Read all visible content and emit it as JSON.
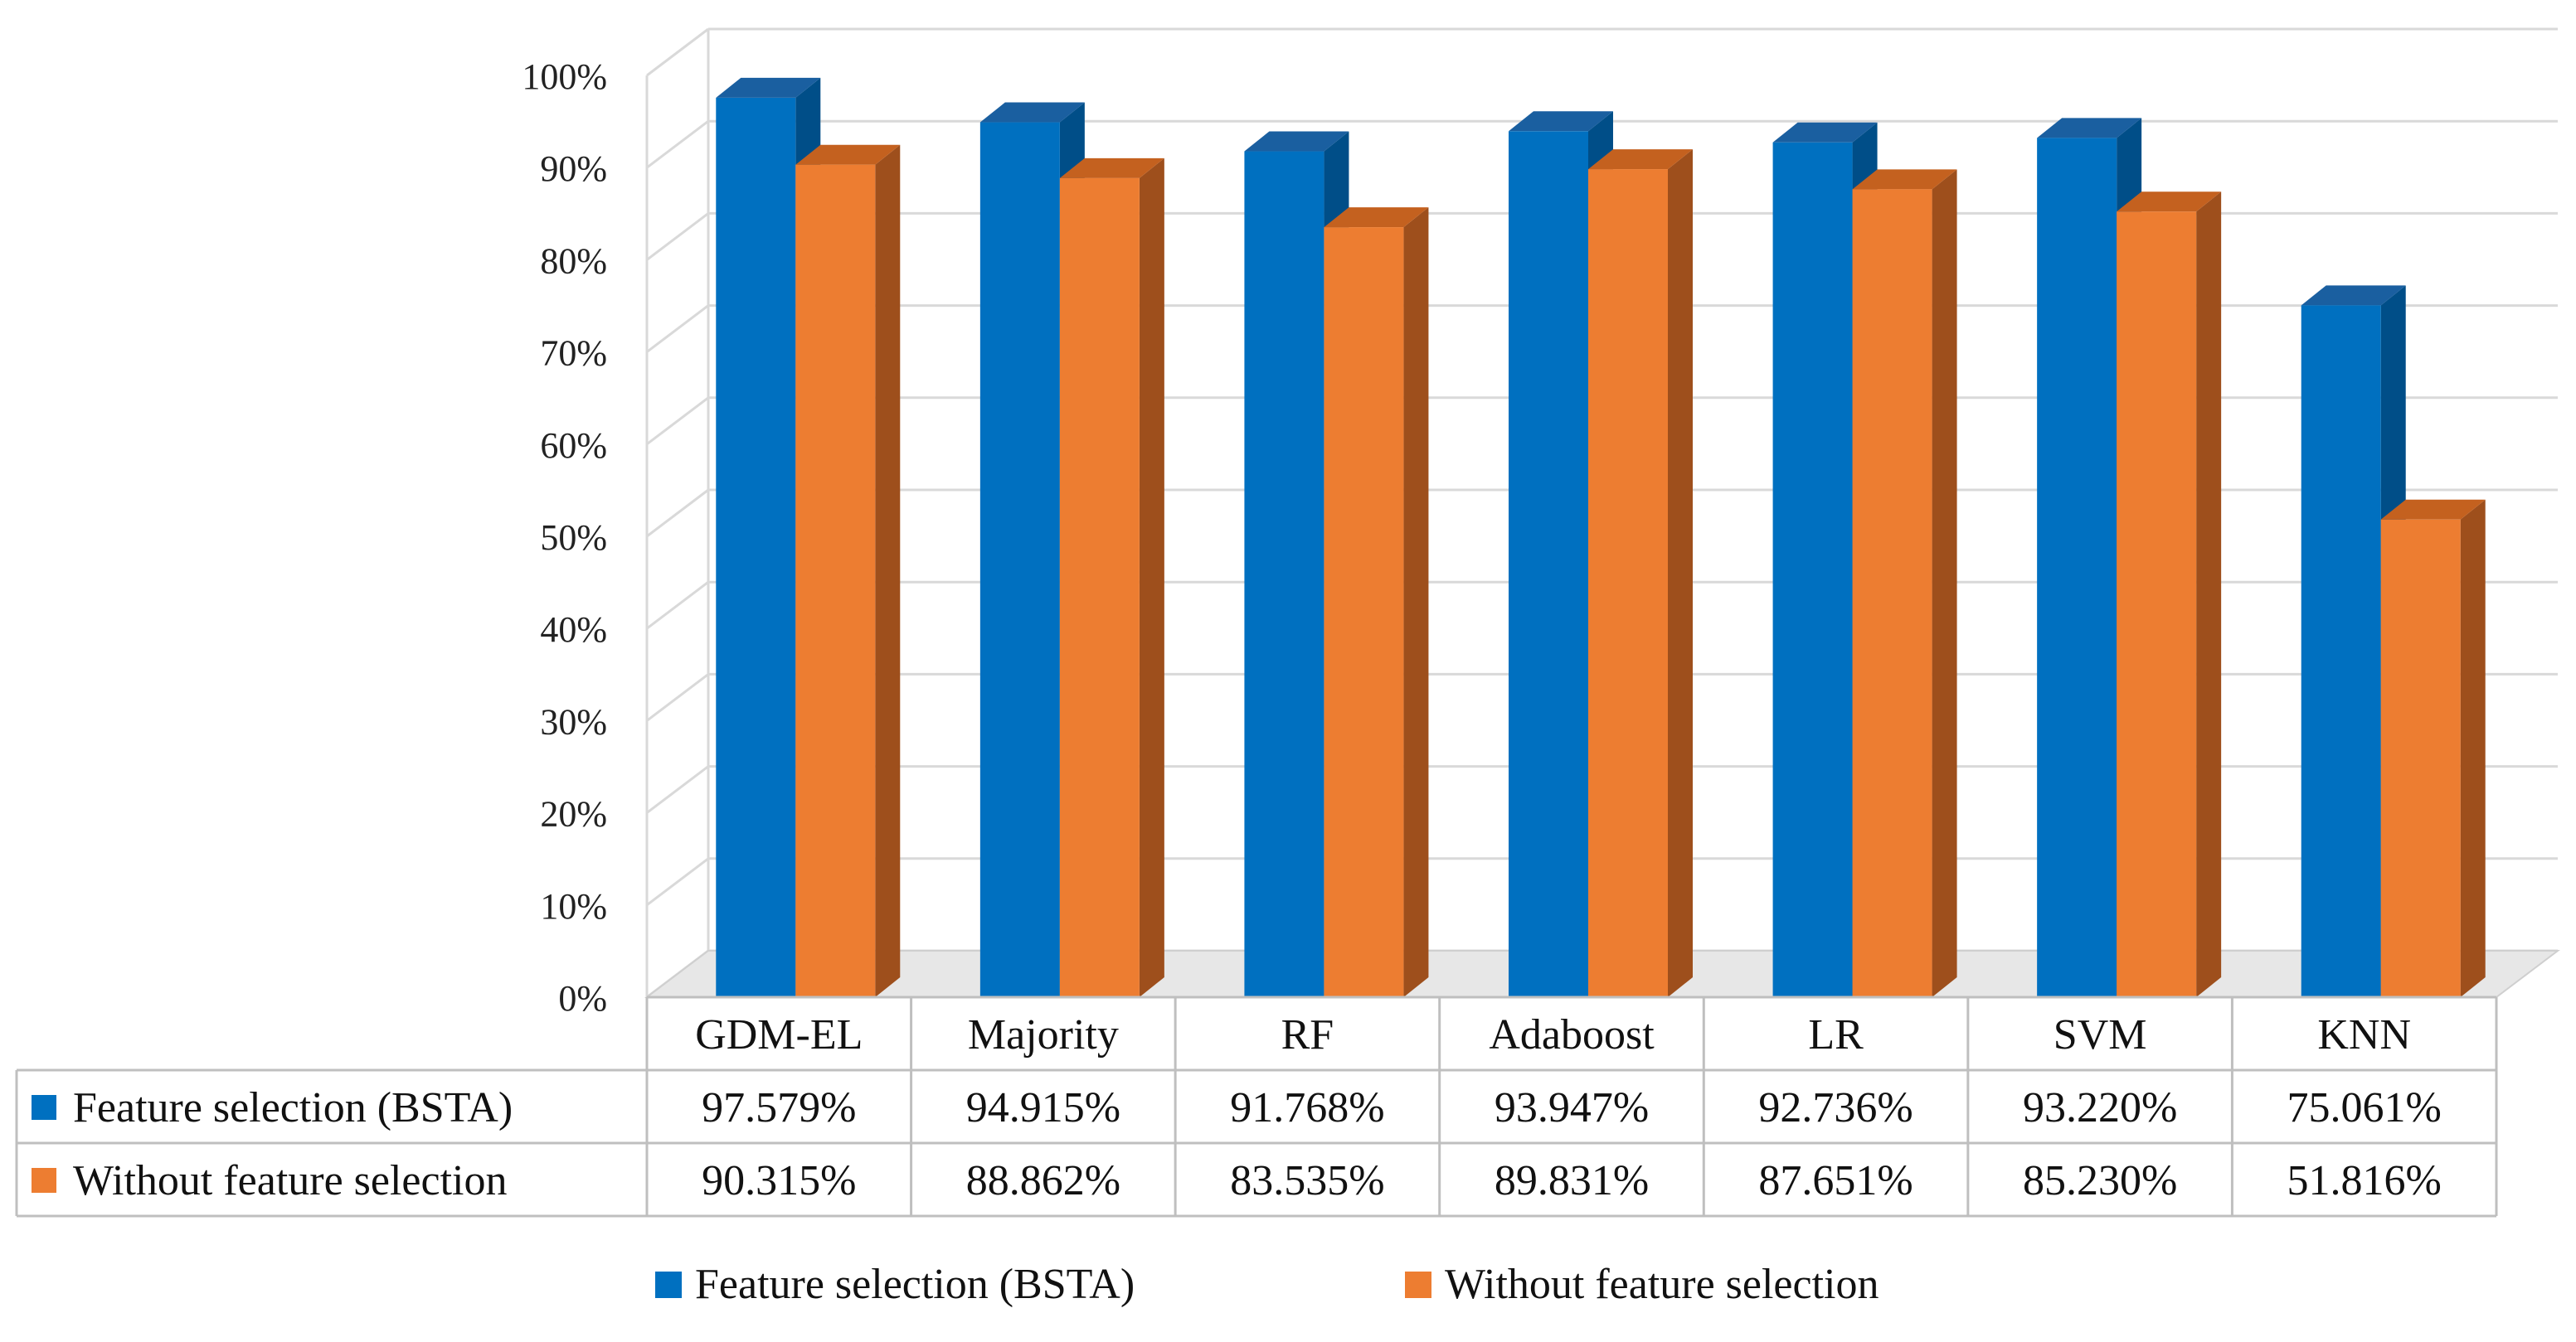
{
  "colors": {
    "series1_front": "#0070C0",
    "series1_side": "#004E88",
    "series1_top": "#1A5FA0",
    "series2_front": "#ED7D31",
    "series2_side": "#9E4F1C",
    "series2_top": "#C4611F",
    "grid": "#D9D9D9",
    "table_border": "#BFBFBF"
  },
  "chart_data": {
    "type": "bar",
    "title": "",
    "xlabel": "",
    "ylabel": "",
    "ylim": [
      0,
      100
    ],
    "ytick_labels": [
      "0%",
      "10%",
      "20%",
      "30%",
      "40%",
      "50%",
      "60%",
      "70%",
      "80%",
      "90%",
      "100%"
    ],
    "categories": [
      "GDM-EL",
      "Majority",
      "RF",
      "Adaboost",
      "LR",
      "SVM",
      "KNN"
    ],
    "series": [
      {
        "name": "Feature selection (BSTA)",
        "values": [
          97.579,
          94.915,
          91.768,
          93.947,
          92.736,
          93.22,
          75.061
        ],
        "labels": [
          "97.579%",
          "94.915%",
          "91.768%",
          "93.947%",
          "92.736%",
          "93.220%",
          "75.061%"
        ]
      },
      {
        "name": "Without feature selection",
        "values": [
          90.315,
          88.862,
          83.535,
          89.831,
          87.651,
          85.23,
          51.816
        ],
        "labels": [
          "90.315%",
          "88.862%",
          "83.535%",
          "89.831%",
          "87.651%",
          "85.230%",
          "51.816%"
        ]
      }
    ],
    "legend_position": "bottom",
    "data_table": true,
    "grid": true
  }
}
